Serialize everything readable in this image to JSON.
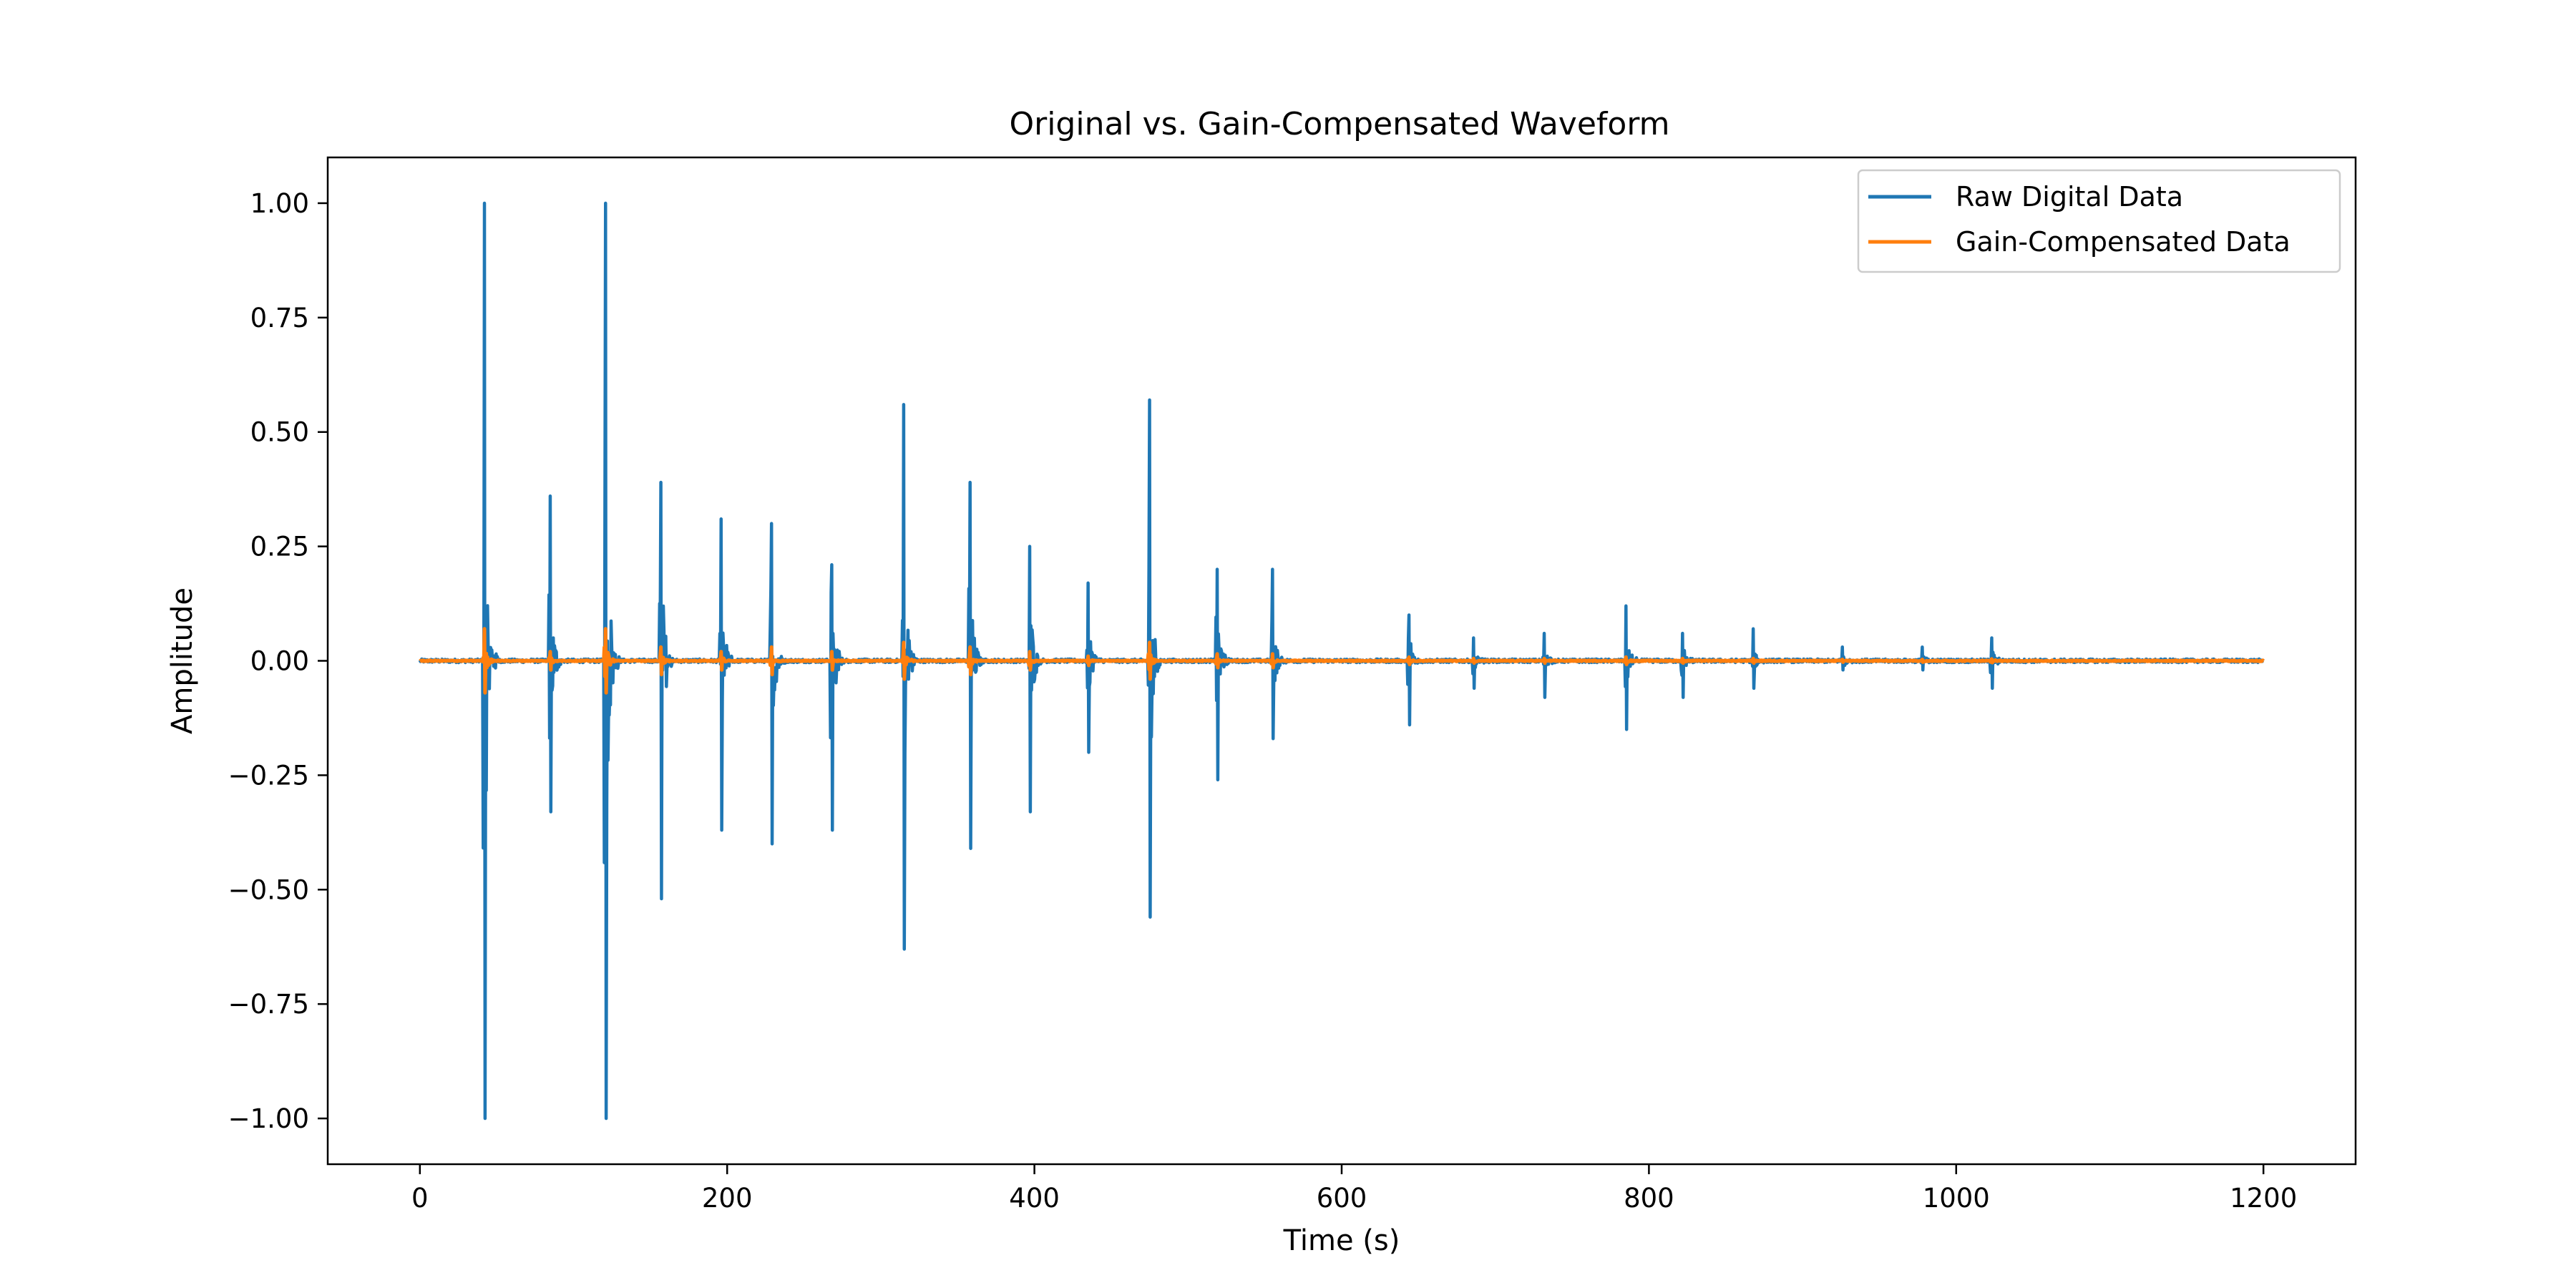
{
  "chart_data": {
    "type": "line",
    "title": "Original vs. Gain-Compensated Waveform",
    "xlabel": "Time (s)",
    "ylabel": "Amplitude",
    "xlim": [
      -60,
      1260
    ],
    "ylim": [
      -1.1,
      1.1
    ],
    "x_ticks": [
      0,
      200,
      400,
      600,
      800,
      1000,
      1200
    ],
    "x_tick_labels": [
      "0",
      "200",
      "400",
      "600",
      "800",
      "1000",
      "1200"
    ],
    "y_ticks": [
      1.0,
      0.75,
      0.5,
      0.25,
      0.0,
      -0.25,
      -0.5,
      -0.75,
      -1.0
    ],
    "y_tick_labels": [
      "1.00",
      "0.75",
      "0.50",
      "0.25",
      "0.00",
      "−0.25",
      "−0.50",
      "−0.75",
      "−1.00"
    ],
    "x_range": [
      0,
      1200
    ],
    "grid": false,
    "legend_position": "top-right",
    "series": [
      {
        "name": "Raw Digital Data",
        "color": "#1f77b4",
        "events": [
          {
            "t": 42,
            "max": 1.0,
            "min": -1.0
          },
          {
            "t": 85,
            "max": 0.36,
            "min": -0.33
          },
          {
            "t": 121,
            "max": 1.0,
            "min": -1.0
          },
          {
            "t": 157,
            "max": 0.39,
            "min": -0.52
          },
          {
            "t": 196,
            "max": 0.31,
            "min": -0.37
          },
          {
            "t": 229,
            "max": 0.3,
            "min": -0.4
          },
          {
            "t": 268,
            "max": 0.21,
            "min": -0.37
          },
          {
            "t": 315,
            "max": 0.56,
            "min": -0.63
          },
          {
            "t": 358,
            "max": 0.39,
            "min": -0.41
          },
          {
            "t": 397,
            "max": 0.25,
            "min": -0.33
          },
          {
            "t": 435,
            "max": 0.17,
            "min": -0.2
          },
          {
            "t": 475,
            "max": 0.57,
            "min": -0.56
          },
          {
            "t": 519,
            "max": 0.2,
            "min": -0.26
          },
          {
            "t": 555,
            "max": 0.2,
            "min": -0.17
          },
          {
            "t": 644,
            "max": 0.1,
            "min": -0.14
          },
          {
            "t": 686,
            "max": 0.05,
            "min": -0.06
          },
          {
            "t": 732,
            "max": 0.06,
            "min": -0.08
          },
          {
            "t": 785,
            "max": 0.12,
            "min": -0.15
          },
          {
            "t": 822,
            "max": 0.06,
            "min": -0.08
          },
          {
            "t": 868,
            "max": 0.07,
            "min": -0.06
          },
          {
            "t": 926,
            "max": 0.03,
            "min": -0.02
          },
          {
            "t": 978,
            "max": 0.03,
            "min": -0.02
          },
          {
            "t": 1023,
            "max": 0.05,
            "min": -0.06
          }
        ]
      },
      {
        "name": "Gain-Compensated Data",
        "color": "#ff7f0e",
        "events": [
          {
            "t": 42,
            "max": 0.07,
            "min": -0.07
          },
          {
            "t": 85,
            "max": 0.02,
            "min": -0.02
          },
          {
            "t": 121,
            "max": 0.07,
            "min": -0.07
          },
          {
            "t": 157,
            "max": 0.03,
            "min": -0.03
          },
          {
            "t": 196,
            "max": 0.02,
            "min": -0.02
          },
          {
            "t": 229,
            "max": 0.03,
            "min": -0.03
          },
          {
            "t": 268,
            "max": 0.02,
            "min": -0.02
          },
          {
            "t": 315,
            "max": 0.04,
            "min": -0.04
          },
          {
            "t": 358,
            "max": 0.03,
            "min": -0.03
          },
          {
            "t": 397,
            "max": 0.02,
            "min": -0.02
          },
          {
            "t": 435,
            "max": 0.01,
            "min": -0.01
          },
          {
            "t": 475,
            "max": 0.04,
            "min": -0.04
          },
          {
            "t": 519,
            "max": 0.015,
            "min": -0.015
          },
          {
            "t": 555,
            "max": 0.015,
            "min": -0.015
          },
          {
            "t": 644,
            "max": 0.008,
            "min": -0.008
          },
          {
            "t": 686,
            "max": 0.005,
            "min": -0.005
          },
          {
            "t": 732,
            "max": 0.005,
            "min": -0.005
          },
          {
            "t": 785,
            "max": 0.008,
            "min": -0.008
          },
          {
            "t": 822,
            "max": 0.005,
            "min": -0.005
          },
          {
            "t": 868,
            "max": 0.005,
            "min": -0.005
          },
          {
            "t": 926,
            "max": 0.003,
            "min": -0.003
          },
          {
            "t": 978,
            "max": 0.003,
            "min": -0.003
          },
          {
            "t": 1023,
            "max": 0.004,
            "min": -0.004
          }
        ]
      }
    ]
  }
}
